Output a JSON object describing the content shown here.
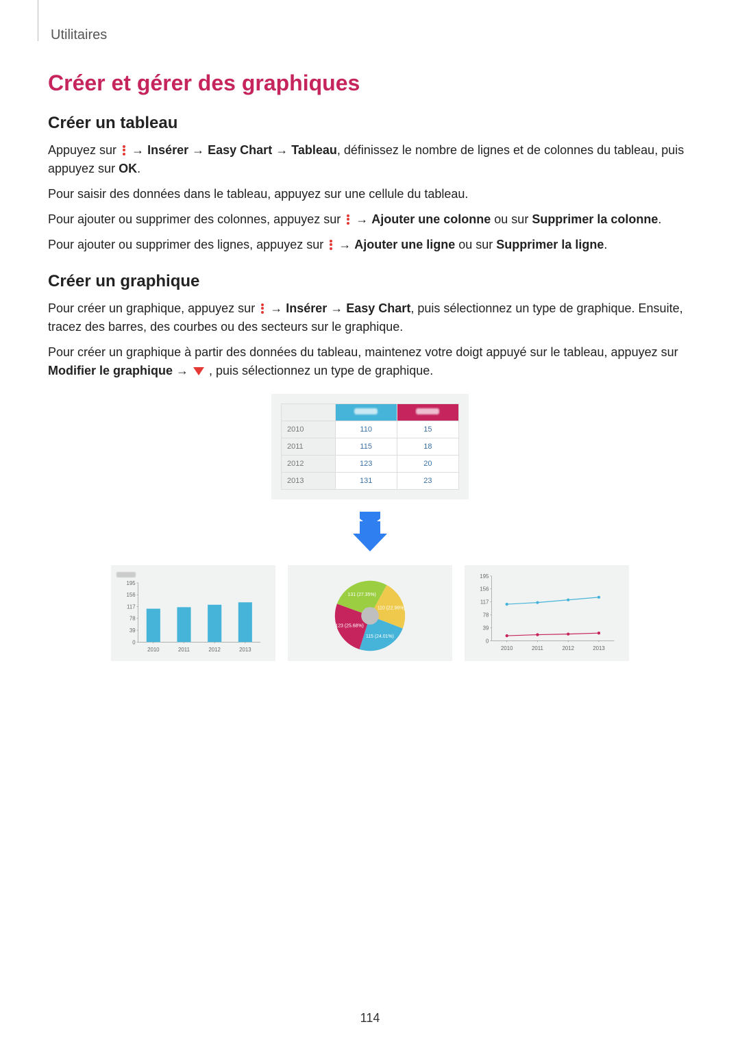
{
  "breadcrumb": "Utilitaires",
  "page_number": "114",
  "main_title": "Créer et gérer des graphiques",
  "section_table": {
    "heading": "Créer un tableau",
    "p1_pre": "Appuyez sur ",
    "p1_mid1": " → ",
    "p1_b1": "Insérer",
    "p1_mid2": " → ",
    "p1_b2": "Easy Chart",
    "p1_mid3": " → ",
    "p1_b3": "Tableau",
    "p1_post": ", définissez le nombre de lignes et de colonnes du tableau, puis appuyez sur ",
    "p1_b4": "OK",
    "p1_end": ".",
    "p2": "Pour saisir des données dans le tableau, appuyez sur une cellule du tableau.",
    "p3_pre": "Pour ajouter ou supprimer des colonnes, appuyez sur ",
    "p3_mid": " → ",
    "p3_b1": "Ajouter une colonne",
    "p3_mid2": " ou sur ",
    "p3_b2": "Supprimer la colonne",
    "p3_end": ".",
    "p4_pre": "Pour ajouter ou supprimer des lignes, appuyez sur ",
    "p4_mid": " → ",
    "p4_b1": "Ajouter une ligne",
    "p4_mid2": " ou sur ",
    "p4_b2": "Supprimer la ligne",
    "p4_end": "."
  },
  "section_chart": {
    "heading": "Créer un graphique",
    "p1_pre": "Pour créer un graphique, appuyez sur ",
    "p1_mid1": " → ",
    "p1_b1": "Insérer",
    "p1_mid2": " → ",
    "p1_b2": "Easy Chart",
    "p1_post": ", puis sélectionnez un type de graphique. Ensuite, tracez des barres, des courbes ou des secteurs sur le graphique.",
    "p2_pre": "Pour créer un graphique à partir des données du tableau, maintenez votre doigt appuyé sur le tableau, appuyez sur ",
    "p2_b1": "Modifier le graphique",
    "p2_mid": " → ",
    "p2_post": " , puis sélectionnez un type de graphique."
  },
  "data_table": {
    "header_height_color": "#46b4d8",
    "header_weight_color": "#c6245d",
    "rows": [
      {
        "year": "2010",
        "h": "110",
        "w": "15"
      },
      {
        "year": "2011",
        "h": "115",
        "w": "18"
      },
      {
        "year": "2012",
        "h": "123",
        "w": "20"
      },
      {
        "year": "2013",
        "h": "131",
        "w": "23"
      }
    ]
  },
  "bar_chart": {
    "type": "bar",
    "categories": [
      "2010",
      "2011",
      "2012",
      "2013"
    ],
    "values": [
      110,
      115,
      123,
      131
    ],
    "ylim": [
      0,
      195
    ],
    "yticks": [
      0,
      39,
      78,
      117,
      156,
      195
    ],
    "bar_color": "#46b4d8",
    "bg": "#f1f3f2",
    "grid_color": "#888",
    "tick_fontsize": 8
  },
  "pie_chart": {
    "type": "pie",
    "slices": [
      {
        "label": "110 (22.96%)",
        "value": 110,
        "color": "#efc94b"
      },
      {
        "label": "115 (24.01%)",
        "value": 115,
        "color": "#46b4d8"
      },
      {
        "label": "123 (25.68%)",
        "value": 123,
        "color": "#c6245d"
      },
      {
        "label": "131 (27.35%)",
        "value": 131,
        "color": "#9bcf41"
      }
    ],
    "center_color": "#bfbfbf",
    "label_color": "#ffffff",
    "label_fontsize": 7,
    "bg": "#f1f3f2"
  },
  "line_chart": {
    "type": "line",
    "categories": [
      "2010",
      "2011",
      "2012",
      "2013"
    ],
    "series": [
      {
        "values": [
          110,
          115,
          123,
          131
        ],
        "color": "#46b4d8"
      },
      {
        "values": [
          15,
          18,
          20,
          23
        ],
        "color": "#c6245d"
      }
    ],
    "ylim": [
      0,
      195
    ],
    "yticks": [
      0,
      39,
      78,
      117,
      156,
      195
    ],
    "grid_color": "#888",
    "bg": "#f1f3f2",
    "marker": "circle",
    "tick_fontsize": 8
  },
  "arrow_color": "#2f7ff0"
}
